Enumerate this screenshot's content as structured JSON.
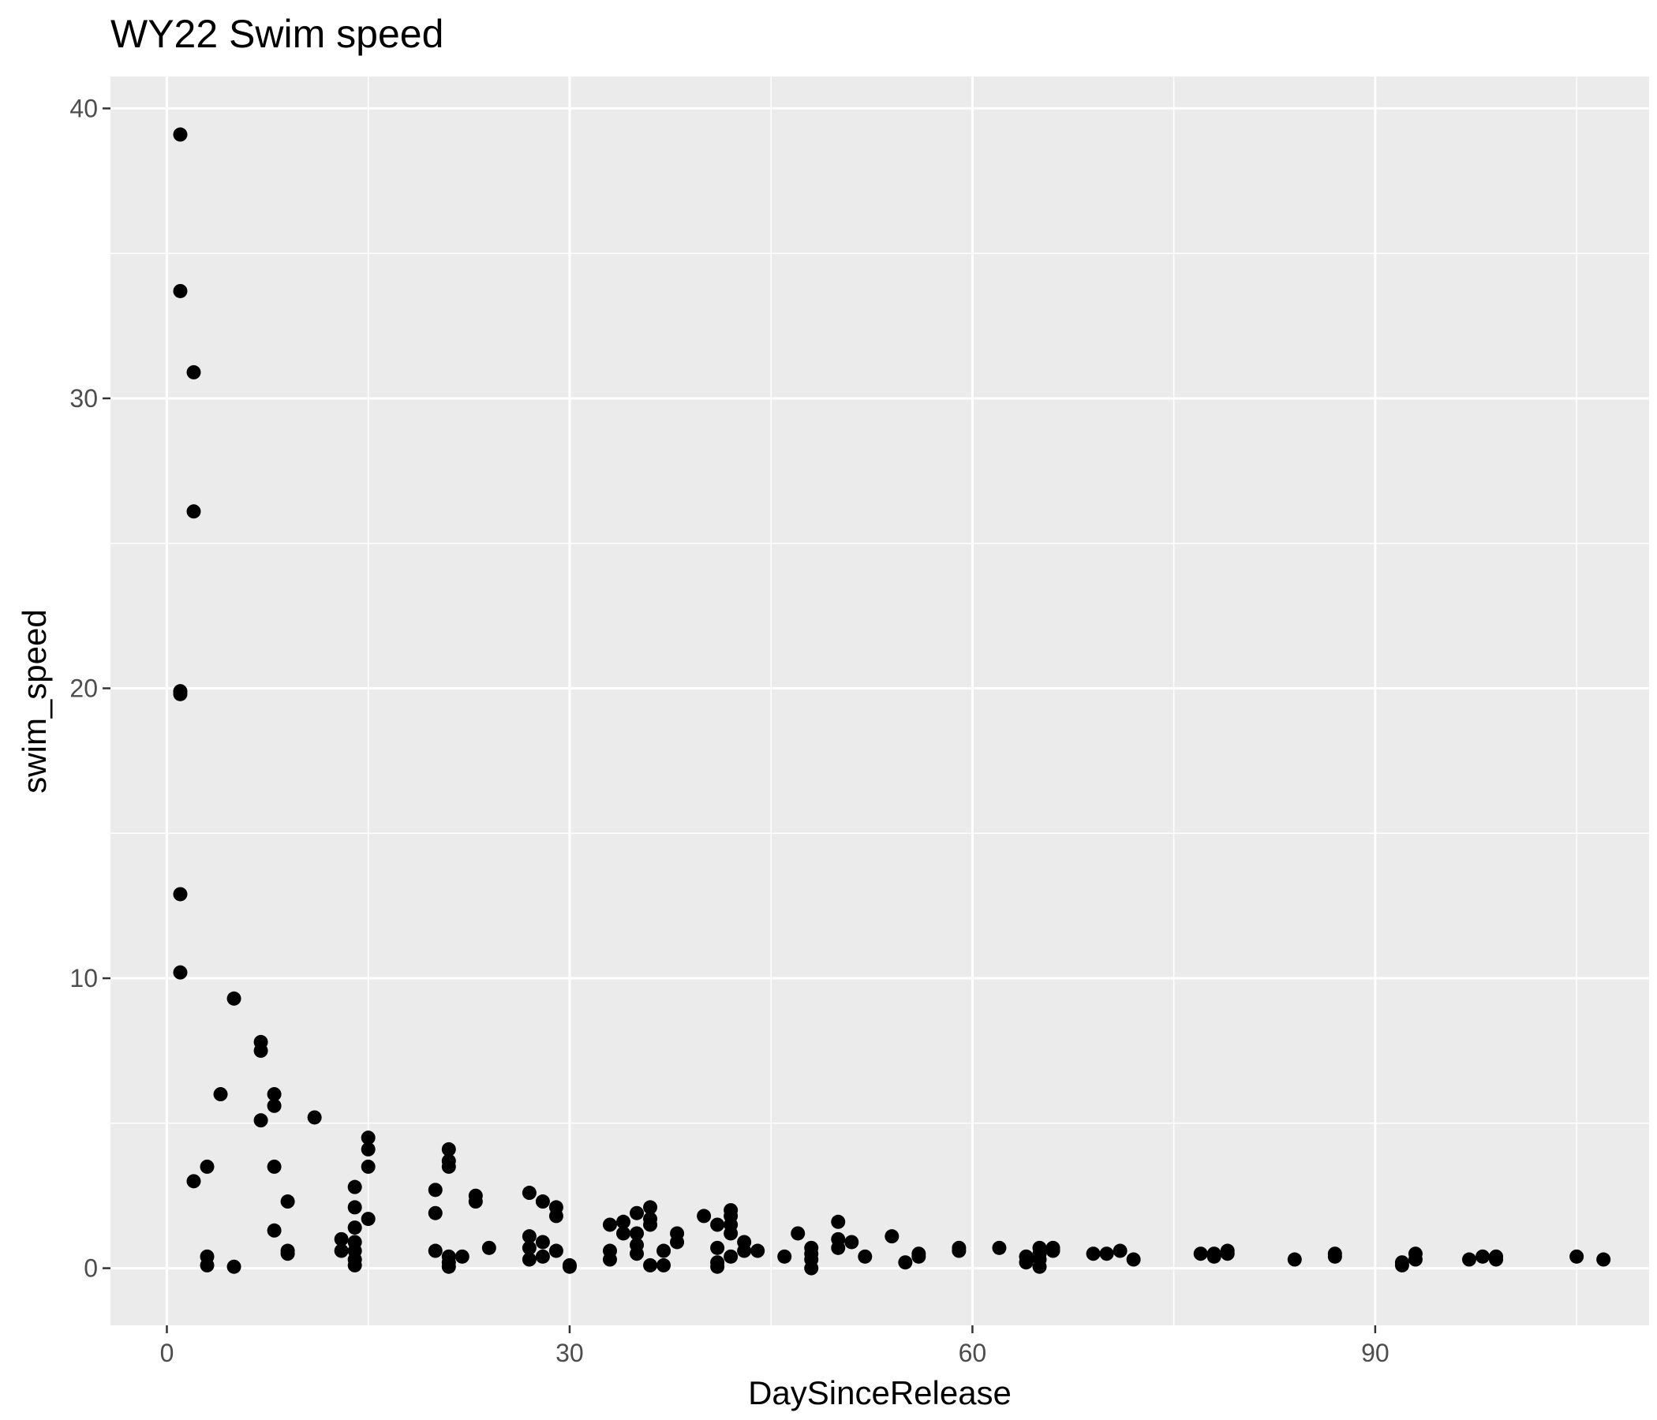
{
  "chart_data": {
    "type": "scatter",
    "title": "WY22 Swim speed",
    "xlabel": "DaySinceRelease",
    "ylabel": "swim_speed",
    "xlim": [
      -4.2,
      110.4
    ],
    "ylim": [
      -1.9706,
      41.1
    ],
    "x_ticks": [
      0,
      30,
      60,
      90
    ],
    "x_tick_labels": [
      "0",
      "30",
      "60",
      "90"
    ],
    "x_minor": [
      15,
      45,
      75,
      105
    ],
    "y_ticks": [
      0,
      10,
      20,
      30,
      40
    ],
    "y_tick_labels": [
      "0",
      "10",
      "20",
      "30",
      "40"
    ],
    "y_minor": [
      5,
      15,
      25,
      35
    ],
    "grid": true,
    "legend": "none",
    "colors": {
      "panel": "#ebebeb",
      "grid": "#ffffff",
      "point": "#000000",
      "tick": "#333333"
    },
    "points": [
      [
        1,
        39.1
      ],
      [
        1,
        33.7
      ],
      [
        2,
        30.9
      ],
      [
        2,
        26.1
      ],
      [
        1,
        19.9
      ],
      [
        1,
        19.8
      ],
      [
        1,
        12.9
      ],
      [
        1,
        10.2
      ],
      [
        5,
        9.3
      ],
      [
        7,
        7.8
      ],
      [
        7,
        7.5
      ],
      [
        4,
        6.0
      ],
      [
        8,
        6.0
      ],
      [
        8,
        5.6
      ],
      [
        7,
        5.1
      ],
      [
        11,
        5.2
      ],
      [
        3,
        3.5
      ],
      [
        2,
        3.0
      ],
      [
        8,
        3.5
      ],
      [
        9,
        2.3
      ],
      [
        8,
        1.3
      ],
      [
        9,
        0.6
      ],
      [
        9,
        0.5
      ],
      [
        3,
        0.4
      ],
      [
        3,
        0.1
      ],
      [
        5,
        0.05
      ],
      [
        15,
        4.5
      ],
      [
        15,
        4.1
      ],
      [
        15,
        3.5
      ],
      [
        14,
        2.8
      ],
      [
        14,
        2.1
      ],
      [
        15,
        1.7
      ],
      [
        14,
        1.4
      ],
      [
        13,
        1.0
      ],
      [
        14,
        0.9
      ],
      [
        13,
        0.6
      ],
      [
        14,
        0.6
      ],
      [
        14,
        0.3
      ],
      [
        14,
        0.1
      ],
      [
        21,
        4.1
      ],
      [
        21,
        3.7
      ],
      [
        21,
        3.5
      ],
      [
        20,
        2.7
      ],
      [
        20,
        1.9
      ],
      [
        20,
        0.6
      ],
      [
        21,
        0.4
      ],
      [
        21,
        0.2
      ],
      [
        21,
        0.05
      ],
      [
        22,
        0.4
      ],
      [
        23,
        2.5
      ],
      [
        23,
        2.3
      ],
      [
        24,
        0.7
      ],
      [
        27,
        2.6
      ],
      [
        28,
        2.3
      ],
      [
        29,
        2.1
      ],
      [
        29,
        1.8
      ],
      [
        27,
        1.1
      ],
      [
        28,
        0.9
      ],
      [
        27,
        0.7
      ],
      [
        29,
        0.6
      ],
      [
        27,
        0.3
      ],
      [
        28,
        0.4
      ],
      [
        30,
        0.1
      ],
      [
        30,
        0.05
      ],
      [
        33,
        1.5
      ],
      [
        34,
        1.6
      ],
      [
        34,
        1.2
      ],
      [
        35,
        1.9
      ],
      [
        36,
        2.1
      ],
      [
        36,
        1.7
      ],
      [
        36,
        1.5
      ],
      [
        35,
        1.2
      ],
      [
        35,
        0.8
      ],
      [
        33,
        0.6
      ],
      [
        35,
        0.5
      ],
      [
        33,
        0.3
      ],
      [
        36,
        0.1
      ],
      [
        37,
        0.6
      ],
      [
        37,
        0.1
      ],
      [
        38,
        1.2
      ],
      [
        38,
        0.9
      ],
      [
        40,
        1.8
      ],
      [
        42,
        2.0
      ],
      [
        42,
        1.8
      ],
      [
        41,
        1.5
      ],
      [
        42,
        1.5
      ],
      [
        42,
        1.2
      ],
      [
        43,
        0.9
      ],
      [
        41,
        0.7
      ],
      [
        43,
        0.6
      ],
      [
        44,
        0.6
      ],
      [
        42,
        0.4
      ],
      [
        41,
        0.2
      ],
      [
        41,
        0.05
      ],
      [
        46,
        0.4
      ],
      [
        47,
        1.2
      ],
      [
        48,
        0.7
      ],
      [
        48,
        0.5
      ],
      [
        48,
        0.3
      ],
      [
        48,
        0.0
      ],
      [
        50,
        1.6
      ],
      [
        50,
        1.0
      ],
      [
        50,
        0.7
      ],
      [
        51,
        0.9
      ],
      [
        52,
        0.4
      ],
      [
        54,
        1.1
      ],
      [
        55,
        0.2
      ],
      [
        56,
        0.5
      ],
      [
        56,
        0.4
      ],
      [
        59,
        0.7
      ],
      [
        59,
        0.6
      ],
      [
        62,
        0.7
      ],
      [
        64,
        0.4
      ],
      [
        64,
        0.2
      ],
      [
        65,
        0.7
      ],
      [
        65,
        0.5
      ],
      [
        65,
        0.3
      ],
      [
        65,
        0.05
      ],
      [
        66,
        0.7
      ],
      [
        66,
        0.6
      ],
      [
        69,
        0.5
      ],
      [
        70,
        0.5
      ],
      [
        71,
        0.6
      ],
      [
        72,
        0.3
      ],
      [
        77,
        0.5
      ],
      [
        78,
        0.5
      ],
      [
        78,
        0.4
      ],
      [
        79,
        0.6
      ],
      [
        79,
        0.5
      ],
      [
        84,
        0.3
      ],
      [
        87,
        0.5
      ],
      [
        87,
        0.4
      ],
      [
        92,
        0.2
      ],
      [
        92,
        0.1
      ],
      [
        93,
        0.5
      ],
      [
        93,
        0.3
      ],
      [
        97,
        0.3
      ],
      [
        98,
        0.4
      ],
      [
        99,
        0.4
      ],
      [
        99,
        0.3
      ],
      [
        105,
        0.4
      ],
      [
        107,
        0.3
      ]
    ]
  }
}
